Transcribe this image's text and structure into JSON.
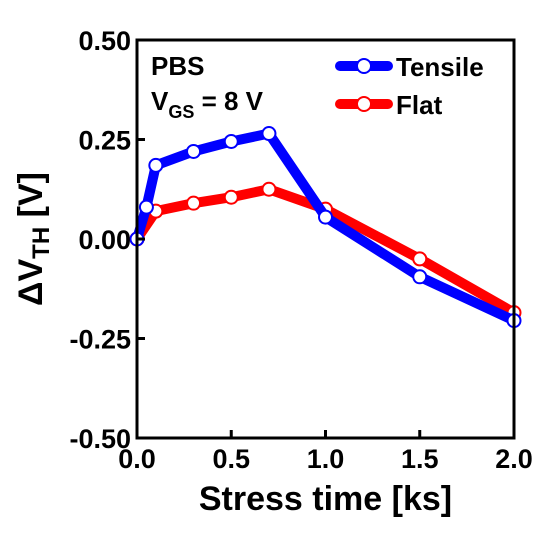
{
  "chart_data": {
    "type": "line",
    "xlabel": "Stress time [ks]",
    "ylabel": {
      "prefix": "ΔV",
      "sub": "TH",
      "suffix": " [V]"
    },
    "xlim": [
      0.0,
      2.0
    ],
    "ylim": [
      -0.5,
      0.5
    ],
    "xticks": [
      0.0,
      0.5,
      1.0,
      1.5,
      2.0
    ],
    "xtick_labels": [
      "0.0",
      "0.5",
      "1.0",
      "1.5",
      "2.0"
    ],
    "yticks": [
      -0.5,
      -0.25,
      0.0,
      0.25,
      0.5
    ],
    "ytick_labels": [
      "-0.50",
      "-0.25",
      "0.00",
      "0.25",
      "0.50"
    ],
    "grid": false,
    "legend_position": "top-right",
    "annotation": {
      "line1": "PBS",
      "line2_prefix": "V",
      "line2_sub": "GS",
      "line2_suffix": " = 8 V"
    },
    "series": [
      {
        "name": "Tensile",
        "color": "#0000ff",
        "marker": "open-circle",
        "x": [
          0.0,
          0.05,
          0.1,
          0.3,
          0.5,
          0.7,
          1.0,
          1.5,
          2.0
        ],
        "y": [
          0.0,
          0.08,
          0.185,
          0.22,
          0.245,
          0.265,
          0.055,
          -0.095,
          -0.205
        ]
      },
      {
        "name": "Flat",
        "color": "#ff0000",
        "marker": "open-circle",
        "x": [
          0.0,
          0.1,
          0.3,
          0.5,
          0.7,
          1.0,
          1.5,
          2.0
        ],
        "y": [
          0.0,
          0.07,
          0.09,
          0.105,
          0.125,
          0.075,
          -0.05,
          -0.185
        ]
      }
    ]
  }
}
